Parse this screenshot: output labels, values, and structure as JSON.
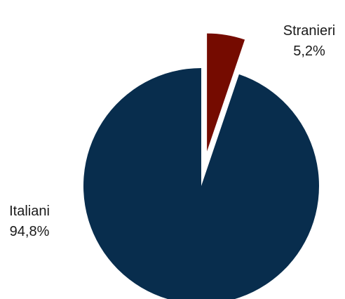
{
  "chart_data": {
    "type": "pie",
    "title": "",
    "categories": [
      "Italiani",
      "Stranieri"
    ],
    "values": [
      94.8,
      5.2
    ],
    "value_labels": [
      "94,8%",
      "5,2%"
    ],
    "unit": "%",
    "exploded": [
      "Stranieri"
    ],
    "legend": "none",
    "colors": [
      "#082d4d",
      "#750b00"
    ]
  }
}
